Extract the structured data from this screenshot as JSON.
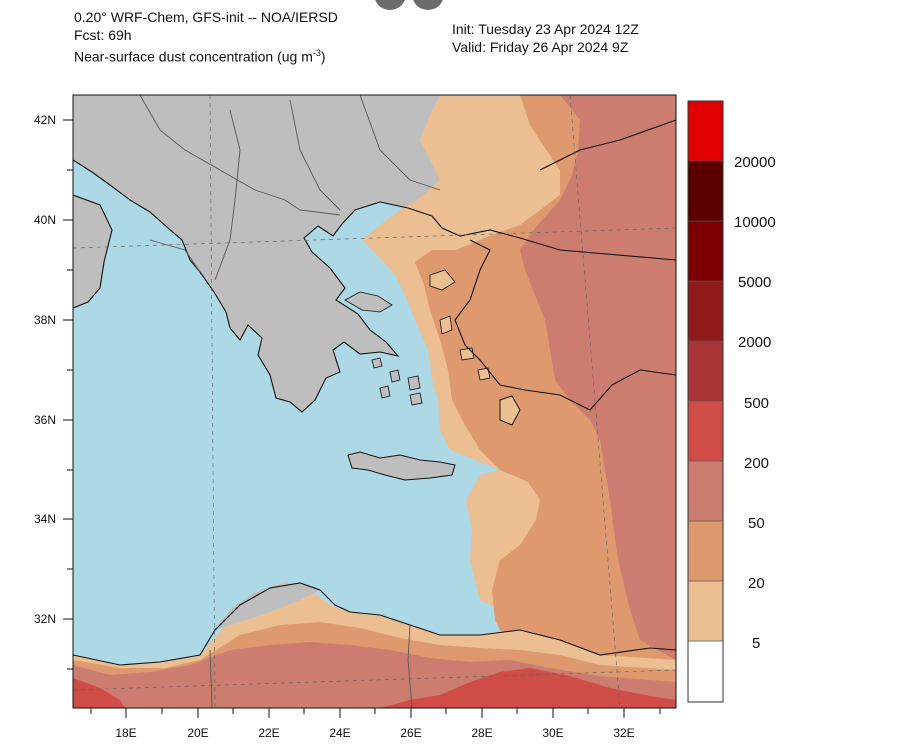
{
  "header": {
    "model_line": "0.20° WRF-Chem, GFS-init -- NOA/IERSD",
    "forecast_line": "Fcst: 69h",
    "variable_line": "Near-surface dust concentration (ug m",
    "variable_exponent": "-3",
    "variable_close": ")",
    "init_line": "Init: Tuesday 23 Apr 2024   12Z",
    "valid_line": "Valid: Friday 26 Apr 2024   9Z"
  },
  "axes": {
    "lat_labels": [
      "42N",
      "40N",
      "38N",
      "36N",
      "34N",
      "32N"
    ],
    "lon_labels": [
      "18E",
      "20E",
      "22E",
      "24E",
      "26E",
      "28E",
      "30E",
      "32E"
    ]
  },
  "colorbar": {
    "labels": [
      "20000",
      "10000",
      "5000",
      "2000",
      "500",
      "200",
      "50",
      "20",
      "5"
    ],
    "colors": [
      "#e00000",
      "#5a0000",
      "#7c0000",
      "#8e1a1a",
      "#a83535",
      "#cf4c47",
      "#cc7d70",
      "#de9a6e",
      "#ecbf92",
      "#ffffff"
    ]
  },
  "palette": {
    "sea": "#add8e6",
    "land": "#bebebe",
    "dust_5": "#ecbf92",
    "dust_20": "#de9a6e",
    "dust_50": "#cc7d70",
    "dust_200": "#cf4c47"
  }
}
